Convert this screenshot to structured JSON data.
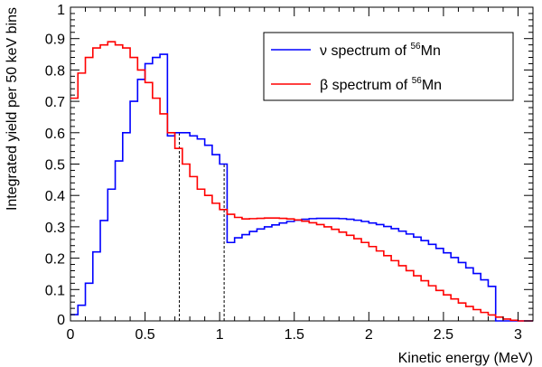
{
  "chart_data": {
    "type": "line",
    "xlabel": "Kinetic energy (MeV)",
    "ylabel": "Integrated yield per 50 keV bins",
    "xlim": [
      0,
      3.1
    ],
    "ylim": [
      0,
      1
    ],
    "x_ticks": [
      "0",
      "0.5",
      "1",
      "1.5",
      "2",
      "2.5",
      "3"
    ],
    "x_tick_values": [
      0,
      0.5,
      1,
      1.5,
      2,
      2.5,
      3
    ],
    "y_ticks": [
      "0",
      "0.1",
      "0.2",
      "0.3",
      "0.4",
      "0.5",
      "0.6",
      "0.7",
      "0.8",
      "0.9",
      "1"
    ],
    "y_tick_values": [
      0,
      0.1,
      0.2,
      0.3,
      0.4,
      0.5,
      0.6,
      0.7,
      0.8,
      0.9,
      1
    ],
    "grid": false,
    "legend_placement": "top-right",
    "bin_width": 0.05,
    "bin_start": 0.0,
    "series": [
      {
        "name": "ν spectrum of 56Mn",
        "label_prefix": "ν spectrum of ",
        "label_sup": "56",
        "label_suffix": "Mn",
        "color": "#0000ff",
        "values": [
          0.02,
          0.05,
          0.12,
          0.22,
          0.32,
          0.42,
          0.51,
          0.6,
          0.7,
          0.77,
          0.82,
          0.84,
          0.85,
          0.59,
          0.6,
          0.6,
          0.59,
          0.58,
          0.56,
          0.53,
          0.5,
          0.25,
          0.265,
          0.275,
          0.285,
          0.293,
          0.3,
          0.306,
          0.312,
          0.317,
          0.321,
          0.324,
          0.326,
          0.327,
          0.327,
          0.327,
          0.326,
          0.324,
          0.321,
          0.317,
          0.312,
          0.307,
          0.301,
          0.294,
          0.286,
          0.277,
          0.267,
          0.256,
          0.244,
          0.231,
          0.217,
          0.202,
          0.186,
          0.169,
          0.151,
          0.131,
          0.11,
          0.0,
          0.0,
          0.0,
          0.0,
          0.0
        ]
      },
      {
        "name": "β spectrum of 56Mn",
        "label_prefix": "β spectrum of ",
        "label_sup": "56",
        "label_suffix": "Mn",
        "color": "#ff0000",
        "values": [
          0.71,
          0.79,
          0.84,
          0.87,
          0.88,
          0.89,
          0.88,
          0.87,
          0.84,
          0.8,
          0.76,
          0.71,
          0.66,
          0.6,
          0.55,
          0.5,
          0.46,
          0.42,
          0.4,
          0.375,
          0.355,
          0.34,
          0.33,
          0.325,
          0.326,
          0.327,
          0.328,
          0.328,
          0.327,
          0.325,
          0.322,
          0.318,
          0.313,
          0.307,
          0.3,
          0.292,
          0.283,
          0.273,
          0.262,
          0.25,
          0.237,
          0.223,
          0.208,
          0.192,
          0.176,
          0.16,
          0.144,
          0.128,
          0.112,
          0.097,
          0.083,
          0.07,
          0.057,
          0.046,
          0.036,
          0.027,
          0.019,
          0.012,
          0.006,
          0.002,
          0.0,
          0.0
        ]
      }
    ],
    "annotations": {
      "dashed_lines_x": [
        0.73,
        1.03
      ]
    }
  }
}
